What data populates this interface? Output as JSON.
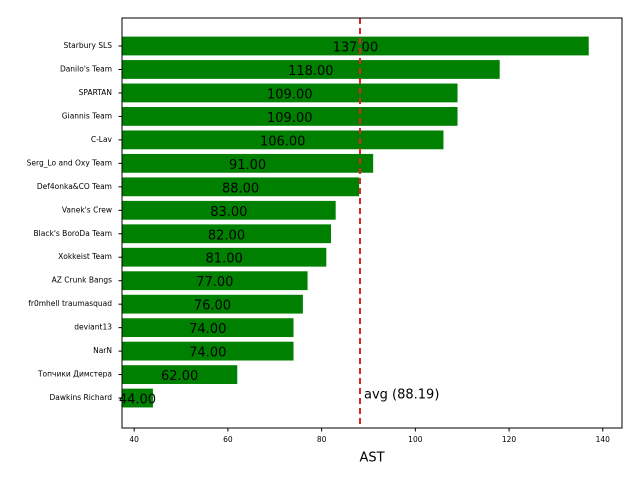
{
  "chart_data": {
    "type": "barh",
    "xlabel": "AST",
    "categories": [
      "Starbury SLS",
      "Danilo's Team",
      "SPARTAN",
      "Giannis Team",
      "C-Lav",
      "Serg_Lo and Oxy Team",
      "Def4onka&CO Team",
      "Vanek's Crew",
      "Black's BoroDa Team",
      "Xokkeist Team",
      "AZ Crunk Bangs",
      "fr0mhell traumasquad",
      "deviant13",
      "NarN",
      "Топчики Димстера",
      "Dawkins Richard"
    ],
    "values": [
      137,
      118,
      109,
      109,
      106,
      91,
      88,
      83,
      82,
      81,
      77,
      76,
      74,
      74,
      62,
      44
    ],
    "value_labels": [
      "137.00",
      "118.00",
      "109.00",
      "109.00",
      "106.00",
      "91.00",
      "88.00",
      "83.00",
      "82.00",
      "81.00",
      "77.00",
      "76.00",
      "74.00",
      "74.00",
      "62.00",
      "44.00"
    ],
    "color": "#008000",
    "xlim": [
      37.4,
      144.1
    ],
    "xticks": [
      40,
      60,
      80,
      100,
      120,
      140
    ],
    "avg": 88.19,
    "avg_label": "avg (88.19)",
    "avg_color": "#d62728"
  }
}
